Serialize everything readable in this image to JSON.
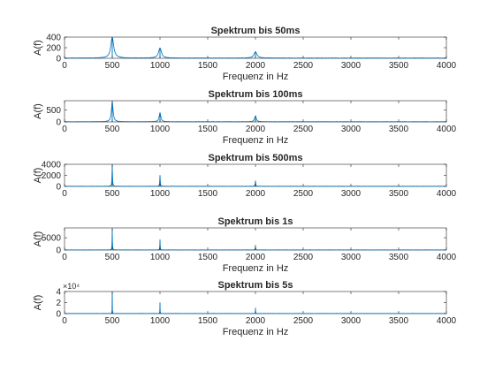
{
  "figure": {
    "line_color": "#0072bd",
    "axis_color": "#262626",
    "background": "#ffffff"
  },
  "chart_data": [
    {
      "type": "line",
      "title": "Spektrum bis 50ms",
      "xlabel": "Frequenz in Hz",
      "ylabel": "A(f)",
      "xlim": [
        0,
        4000
      ],
      "ylim": [
        0,
        400
      ],
      "xticks": [
        0,
        500,
        1000,
        1500,
        2000,
        2500,
        3000,
        3500,
        4000
      ],
      "xtick_labels": [
        "0",
        "500",
        "1000",
        "1500",
        "2000",
        "2500",
        "3000",
        "3500",
        "4000"
      ],
      "yticks": [
        0,
        200,
        400
      ],
      "ytick_labels": [
        "0",
        "200",
        "400"
      ],
      "y_multiplier": "",
      "series": [
        {
          "peaks": [
            [
              500,
              390
            ],
            [
              1000,
              190
            ],
            [
              2000,
              120
            ]
          ],
          "peak_width_hz": 18,
          "noise_level": 6
        }
      ]
    },
    {
      "type": "line",
      "title": "Spektrum bis 100ms",
      "xlabel": "Frequenz in Hz",
      "ylabel": "A(f)",
      "xlim": [
        0,
        4000
      ],
      "ylim": [
        0,
        900
      ],
      "xticks": [
        0,
        500,
        1000,
        1500,
        2000,
        2500,
        3000,
        3500,
        4000
      ],
      "xtick_labels": [
        "0",
        "500",
        "1000",
        "1500",
        "2000",
        "2500",
        "3000",
        "3500",
        "4000"
      ],
      "yticks": [
        0,
        500
      ],
      "ytick_labels": [
        "0",
        "500"
      ],
      "y_multiplier": "",
      "series": [
        {
          "peaks": [
            [
              500,
              850
            ],
            [
              1000,
              380
            ],
            [
              2000,
              250
            ]
          ],
          "peak_width_hz": 10,
          "noise_level": 10
        }
      ]
    },
    {
      "type": "line",
      "title": "Spektrum bis 500ms",
      "xlabel": "",
      "ylabel": "A(f)",
      "xlim": [
        0,
        4000
      ],
      "ylim": [
        0,
        4000
      ],
      "xticks": [
        0,
        500,
        1000,
        1500,
        2000,
        2500,
        3000,
        3500,
        4000
      ],
      "xtick_labels": [
        "0",
        "500",
        "1000",
        "1500",
        "2000",
        "2500",
        "3000",
        "3500",
        "4000"
      ],
      "yticks": [
        0,
        2000,
        4000
      ],
      "ytick_labels": [
        "0",
        "2000",
        "4000"
      ],
      "y_multiplier": "",
      "series": [
        {
          "peaks": [
            [
              500,
              3900
            ],
            [
              1000,
              2000
            ],
            [
              2000,
              1000
            ]
          ],
          "peak_width_hz": 3,
          "noise_level": 30
        }
      ]
    },
    {
      "type": "line",
      "title": "Spektrum bis 1s",
      "xlabel": "Frequenz in Hz",
      "ylabel": "A(f)",
      "xlim": [
        0,
        4000
      ],
      "ylim": [
        0,
        9000
      ],
      "xticks": [
        0,
        500,
        1000,
        1500,
        2000,
        2500,
        3000,
        3500,
        4000
      ],
      "xtick_labels": [
        "0",
        "500",
        "1000",
        "1500",
        "2000",
        "2500",
        "3000",
        "3500",
        "4000"
      ],
      "yticks": [
        0,
        5000
      ],
      "ytick_labels": [
        "0",
        "5000"
      ],
      "y_multiplier": "",
      "series": [
        {
          "peaks": [
            [
              500,
              8500
            ],
            [
              1000,
              4200
            ],
            [
              2000,
              2000
            ]
          ],
          "peak_width_hz": 2,
          "noise_level": 60
        }
      ]
    },
    {
      "type": "line",
      "title": "Spektrum bis 5s",
      "xlabel": "Frequenz in Hz",
      "ylabel": "A(f)",
      "xlim": [
        0,
        4000
      ],
      "ylim": [
        0,
        4
      ],
      "xticks": [
        0,
        500,
        1000,
        1500,
        2000,
        2500,
        3000,
        3500,
        4000
      ],
      "xtick_labels": [
        "0",
        "500",
        "1000",
        "1500",
        "2000",
        "2500",
        "3000",
        "3500",
        "4000"
      ],
      "yticks": [
        0,
        2,
        4
      ],
      "ytick_labels": [
        "0",
        "2",
        "4"
      ],
      "y_multiplier": "×10⁴",
      "series": [
        {
          "peaks": [
            [
              500,
              4.0
            ],
            [
              1000,
              2.0
            ],
            [
              2000,
              1.0
            ]
          ],
          "peak_width_hz": 1,
          "noise_level": 0.03
        }
      ]
    }
  ]
}
